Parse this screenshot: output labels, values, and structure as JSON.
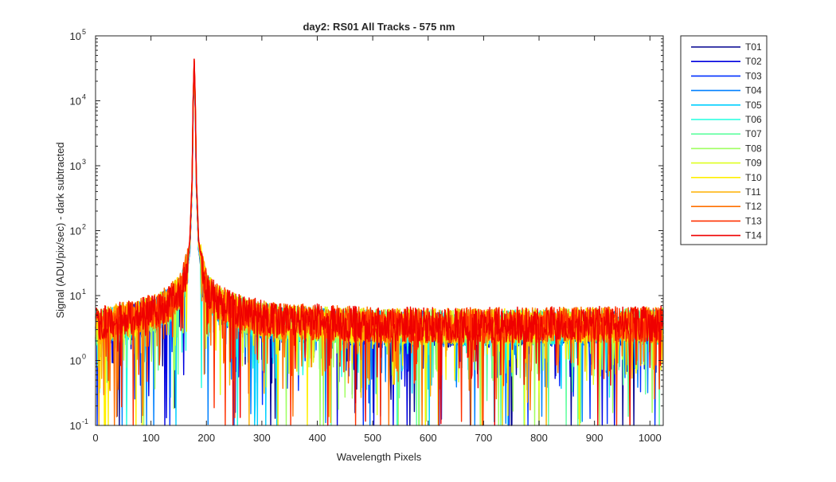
{
  "chart_data": {
    "type": "line",
    "title": "day2: RS01  All Tracks - 575 nm",
    "xlabel": "Wavelength Pixels",
    "ylabel": "Signal (ADU/pix/sec) - dark subtracted",
    "xlim": [
      0,
      1024
    ],
    "ylim": [
      0.1,
      100000
    ],
    "yscale": "log",
    "grid": false,
    "legend_position": "outside-top-right",
    "x_ticks": [
      "0",
      "100",
      "200",
      "300",
      "400",
      "500",
      "600",
      "700",
      "800",
      "900",
      "1000"
    ],
    "x_tick_values": [
      0,
      100,
      200,
      300,
      400,
      500,
      600,
      700,
      800,
      900,
      1000
    ],
    "y_tick_values": [
      0.1,
      1,
      10,
      100,
      1000,
      10000,
      100000
    ],
    "y_tick_mantissa": "10",
    "y_tick_exponents": [
      "-1",
      "0",
      "1",
      "2",
      "3",
      "4",
      "5"
    ],
    "peak": {
      "x": 178,
      "y": 38000
    },
    "profile": {
      "x": [
        0,
        40,
        80,
        110,
        135,
        155,
        165,
        170,
        174,
        176,
        178,
        180,
        182,
        186,
        192,
        200,
        215,
        240,
        280,
        330,
        400,
        500,
        650,
        800,
        1024
      ],
      "y": [
        3.2,
        3.8,
        4.5,
        5.5,
        7.5,
        12,
        25,
        60,
        500,
        8000,
        38000,
        8000,
        500,
        60,
        25,
        12,
        8,
        6,
        4.6,
        3.8,
        3.6,
        3.3,
        3.2,
        3.3,
        3.4
      ]
    },
    "series": [
      {
        "name": "T01",
        "color": "#00008f"
      },
      {
        "name": "T02",
        "color": "#0000df"
      },
      {
        "name": "T03",
        "color": "#0030ff"
      },
      {
        "name": "T04",
        "color": "#0080ff"
      },
      {
        "name": "T05",
        "color": "#00cfff"
      },
      {
        "name": "T06",
        "color": "#20ffdf"
      },
      {
        "name": "T07",
        "color": "#60ffa0"
      },
      {
        "name": "T08",
        "color": "#9fff60"
      },
      {
        "name": "T09",
        "color": "#dfff20"
      },
      {
        "name": "T10",
        "color": "#ffef00"
      },
      {
        "name": "T11",
        "color": "#ffb000"
      },
      {
        "name": "T12",
        "color": "#ff7000"
      },
      {
        "name": "T13",
        "color": "#ff3000"
      },
      {
        "name": "T14",
        "color": "#ef0000"
      }
    ]
  }
}
